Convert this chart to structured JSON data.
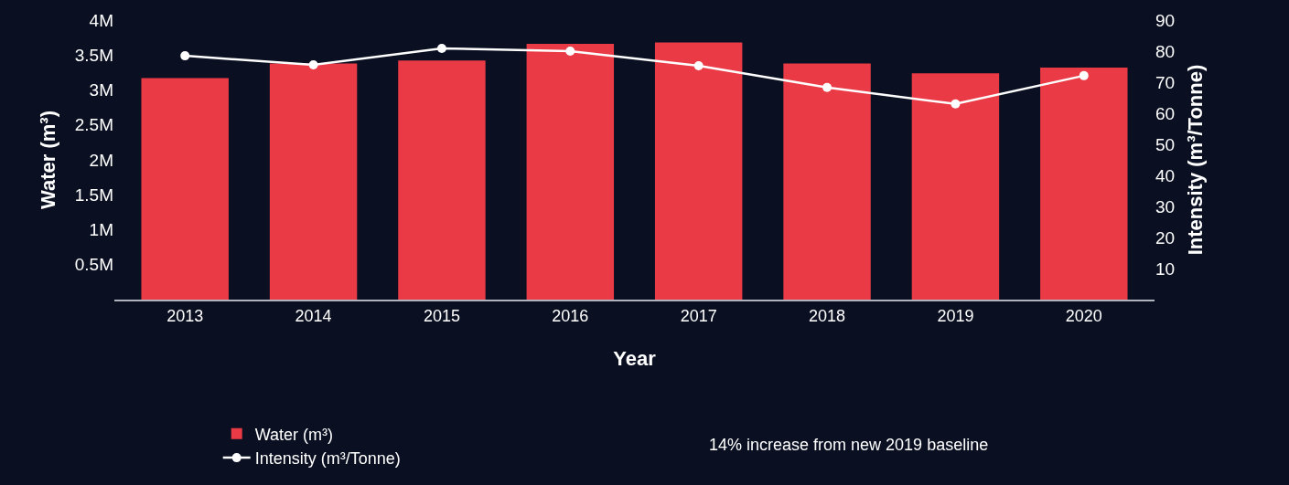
{
  "chart_data": {
    "type": "bar",
    "xlabel": "Year",
    "ylabel": "Water (m³)",
    "y2label": "Intensity (m³/Tonne)",
    "categories": [
      "2013",
      "2014",
      "2015",
      "2016",
      "2017",
      "2018",
      "2019",
      "2020"
    ],
    "series": [
      {
        "name": "Water (m³)",
        "color": "#ea3a45",
        "values": [
          3170000,
          3380000,
          3420000,
          3660000,
          3680000,
          3380000,
          3240000,
          3320000
        ]
      },
      {
        "name": "Intensity (m³/Tonne)",
        "type": "line",
        "axis": "y2",
        "color": "#ffffff",
        "marker": "circle",
        "line_style": "solid",
        "values": [
          78.5,
          75.6,
          80.9,
          80,
          75.3,
          68.3,
          63,
          72.1
        ]
      }
    ],
    "ylim": [
      0,
      4000000
    ],
    "yticks": [
      {
        "value": 500000,
        "label": "0.5M"
      },
      {
        "value": 1000000,
        "label": "1M"
      },
      {
        "value": 1500000,
        "label": "1.5M"
      },
      {
        "value": 2000000,
        "label": "2M"
      },
      {
        "value": 2500000,
        "label": "2.5M"
      },
      {
        "value": 3000000,
        "label": "3M"
      },
      {
        "value": 3500000,
        "label": "3.5M"
      },
      {
        "value": 4000000,
        "label": "4M"
      }
    ],
    "y2lim": [
      0,
      90
    ],
    "y2ticks": [
      10,
      20,
      30,
      40,
      50,
      60,
      70,
      80,
      90
    ],
    "annotations": [
      "14% increase from new 2019 baseline"
    ],
    "legend": "bottom left",
    "grid": false
  }
}
